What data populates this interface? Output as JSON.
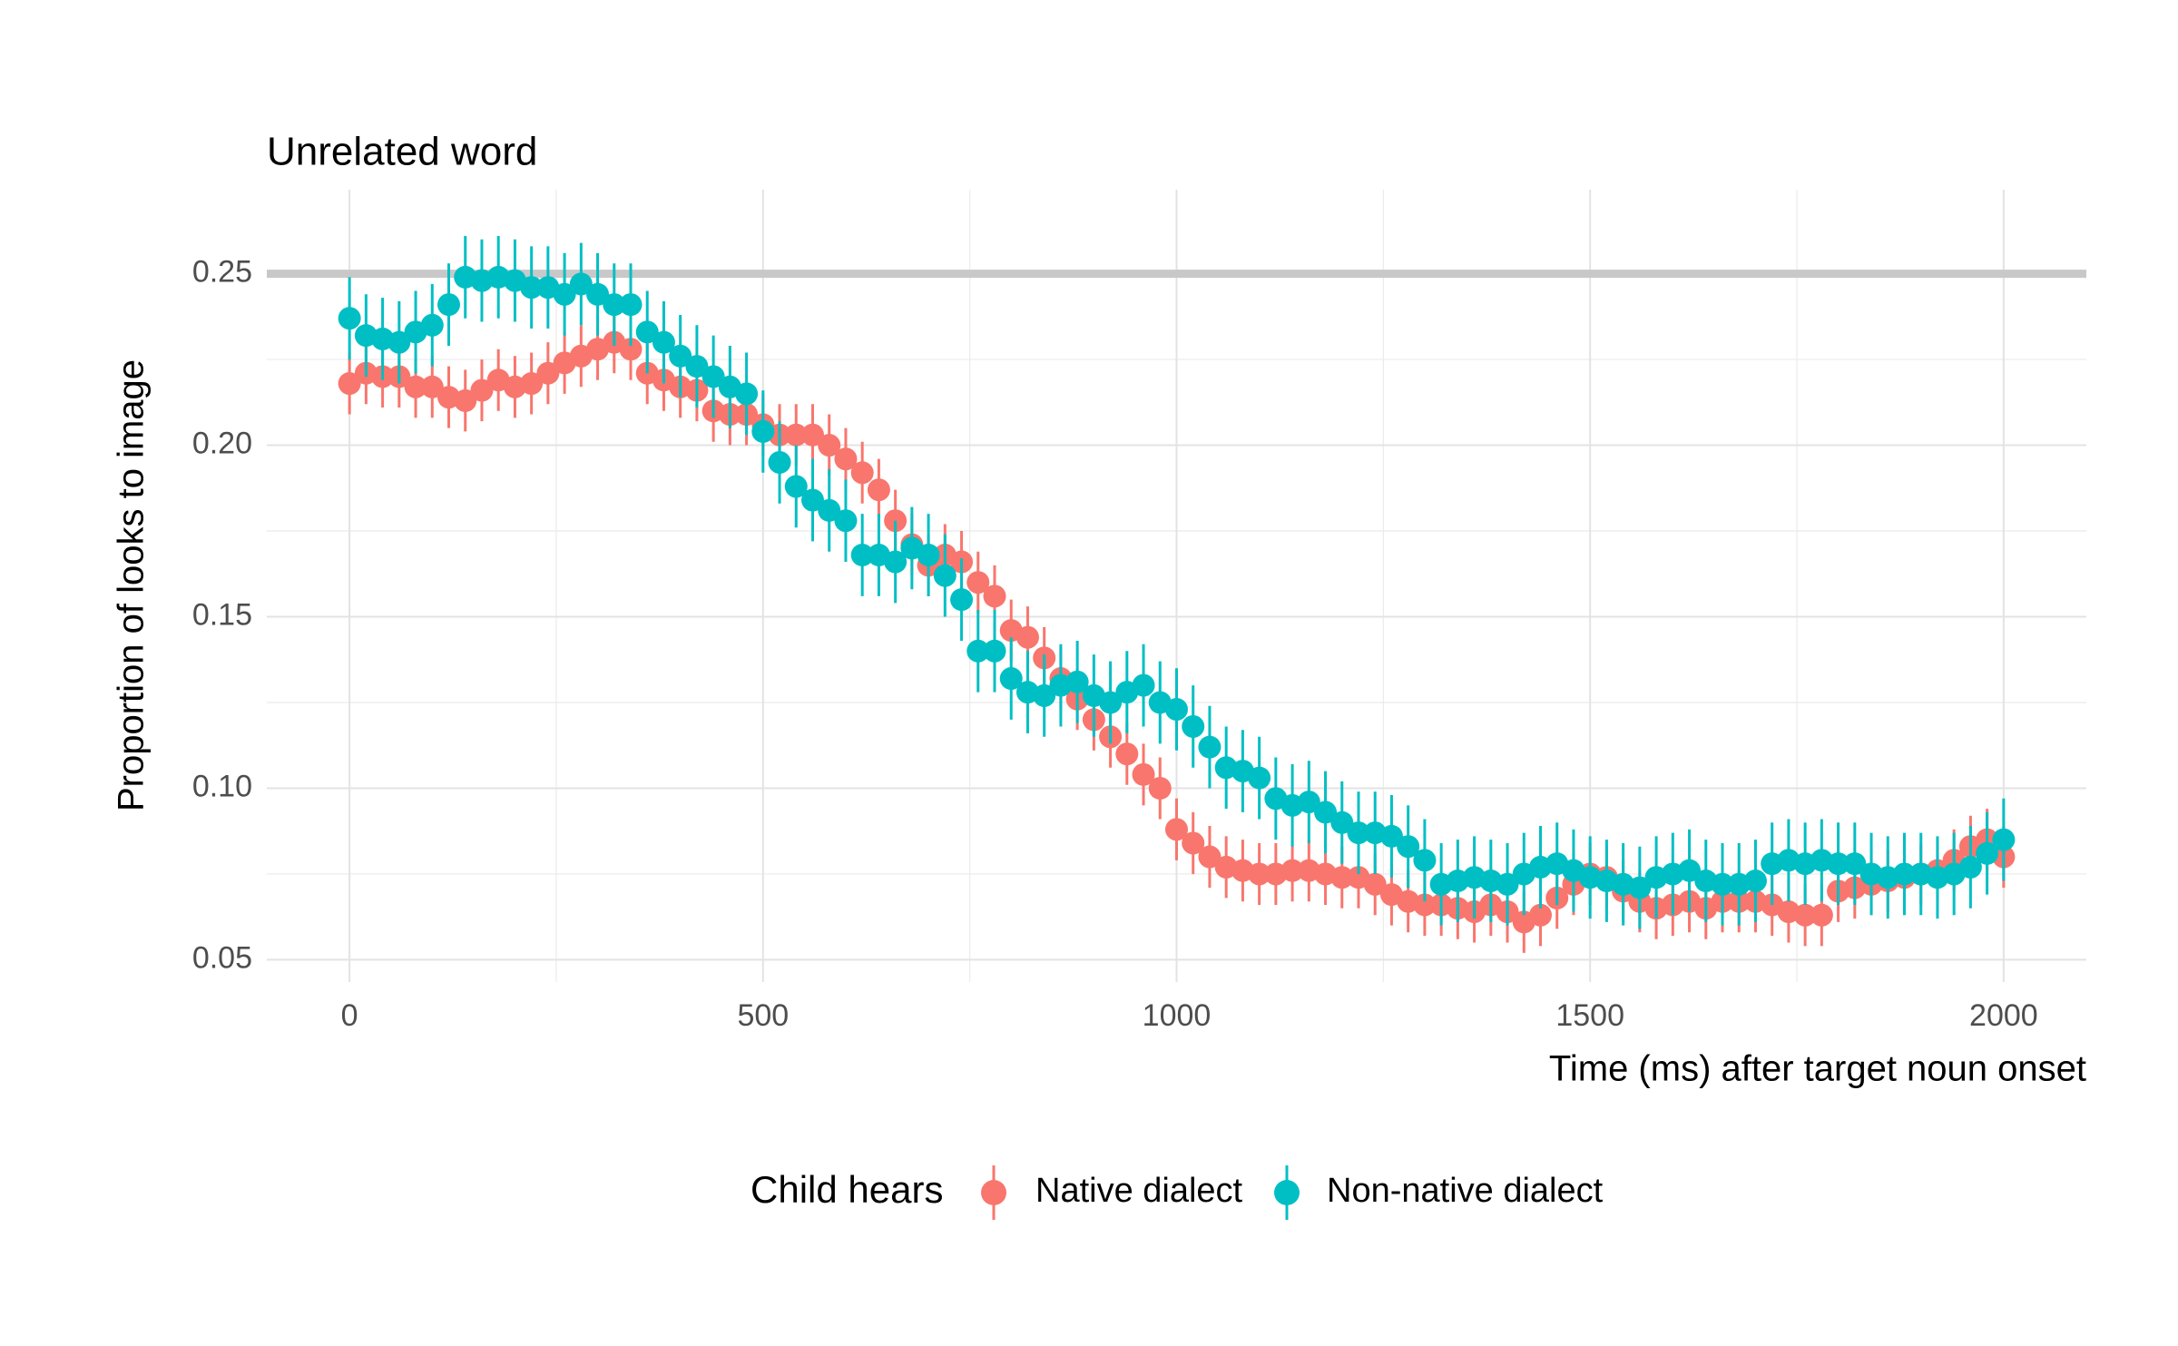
{
  "chart_data": {
    "type": "scatter",
    "title": "Unrelated word",
    "x_label": "Time (ms) after target noun onset",
    "y_label": "Proportion of looks to image",
    "legend_title": "Child hears",
    "legend_position": "bottom",
    "xlim": [
      -100,
      2100
    ],
    "xticks": [
      0,
      500,
      1000,
      1500,
      2000
    ],
    "x_minor_ticks": [
      250,
      750,
      1250,
      1750
    ],
    "ylim": [
      0.0435,
      0.2745
    ],
    "yticks": [
      0.05,
      {
        "value": 0.1,
        "label": "0.10"
      },
      0.15,
      {
        "value": 0.2,
        "label": "0.20"
      },
      0.25
    ],
    "y_minor_ticks": [
      0.075,
      0.125,
      0.175,
      0.225
    ],
    "grid": true,
    "hline": 0.25,
    "hline_color": "#c8c8c8",
    "x": [
      0,
      20,
      40,
      60,
      80,
      100,
      120,
      140,
      160,
      180,
      200,
      220,
      240,
      260,
      280,
      300,
      320,
      340,
      360,
      380,
      400,
      420,
      440,
      460,
      480,
      500,
      520,
      540,
      560,
      580,
      600,
      620,
      640,
      660,
      680,
      700,
      720,
      740,
      760,
      780,
      800,
      820,
      840,
      860,
      880,
      900,
      920,
      940,
      960,
      980,
      1000,
      1020,
      1040,
      1060,
      1080,
      1100,
      1120,
      1140,
      1160,
      1180,
      1200,
      1220,
      1240,
      1260,
      1280,
      1300,
      1320,
      1340,
      1360,
      1380,
      1400,
      1420,
      1440,
      1460,
      1480,
      1500,
      1520,
      1540,
      1560,
      1580,
      1600,
      1620,
      1640,
      1660,
      1680,
      1700,
      1720,
      1740,
      1760,
      1780,
      1800,
      1820,
      1840,
      1860,
      1880,
      1900,
      1920,
      1940,
      1960,
      1980,
      2000
    ],
    "series": [
      {
        "name": "Native dialect",
        "color": "#f8766d",
        "error": 0.009,
        "values": [
          0.218,
          0.221,
          0.22,
          0.22,
          0.217,
          0.217,
          0.214,
          0.213,
          0.216,
          0.219,
          0.217,
          0.218,
          0.221,
          0.224,
          0.226,
          0.228,
          0.23,
          0.228,
          0.221,
          0.219,
          0.217,
          0.216,
          0.21,
          0.209,
          0.209,
          0.206,
          0.203,
          0.203,
          0.203,
          0.2,
          0.196,
          0.192,
          0.187,
          0.178,
          0.171,
          0.165,
          0.168,
          0.166,
          0.16,
          0.156,
          0.146,
          0.144,
          0.138,
          0.132,
          0.126,
          0.12,
          0.115,
          0.11,
          0.104,
          0.1,
          0.088,
          0.084,
          0.08,
          0.077,
          0.076,
          0.075,
          0.075,
          0.076,
          0.076,
          0.075,
          0.074,
          0.074,
          0.072,
          0.069,
          0.067,
          0.066,
          0.066,
          0.065,
          0.064,
          0.066,
          0.064,
          0.061,
          0.063,
          0.068,
          0.072,
          0.075,
          0.074,
          0.07,
          0.067,
          0.065,
          0.066,
          0.067,
          0.065,
          0.067,
          0.067,
          0.067,
          0.066,
          0.064,
          0.063,
          0.063,
          0.07,
          0.071,
          0.072,
          0.073,
          0.074,
          0.075,
          0.076,
          0.079,
          0.083,
          0.085,
          0.08
        ]
      },
      {
        "name": "Non-native dialect",
        "color": "#00bfc4",
        "error": 0.012,
        "values": [
          0.237,
          0.232,
          0.231,
          0.23,
          0.233,
          0.235,
          0.241,
          0.249,
          0.248,
          0.249,
          0.248,
          0.246,
          0.246,
          0.244,
          0.247,
          0.244,
          0.241,
          0.241,
          0.233,
          0.23,
          0.226,
          0.223,
          0.22,
          0.217,
          0.215,
          0.204,
          0.195,
          0.188,
          0.184,
          0.181,
          0.178,
          0.168,
          0.168,
          0.166,
          0.17,
          0.168,
          0.162,
          0.155,
          0.14,
          0.14,
          0.132,
          0.128,
          0.127,
          0.13,
          0.131,
          0.127,
          0.125,
          0.128,
          0.13,
          0.125,
          0.123,
          0.118,
          0.112,
          0.106,
          0.105,
          0.103,
          0.097,
          0.095,
          0.096,
          0.093,
          0.09,
          0.087,
          0.087,
          0.086,
          0.083,
          0.079,
          0.072,
          0.073,
          0.074,
          0.073,
          0.072,
          0.075,
          0.077,
          0.078,
          0.076,
          0.074,
          0.073,
          0.072,
          0.071,
          0.074,
          0.075,
          0.076,
          0.073,
          0.072,
          0.072,
          0.073,
          0.078,
          0.079,
          0.078,
          0.079,
          0.078,
          0.078,
          0.075,
          0.074,
          0.075,
          0.075,
          0.074,
          0.075,
          0.077,
          0.081,
          0.085
        ]
      }
    ]
  }
}
